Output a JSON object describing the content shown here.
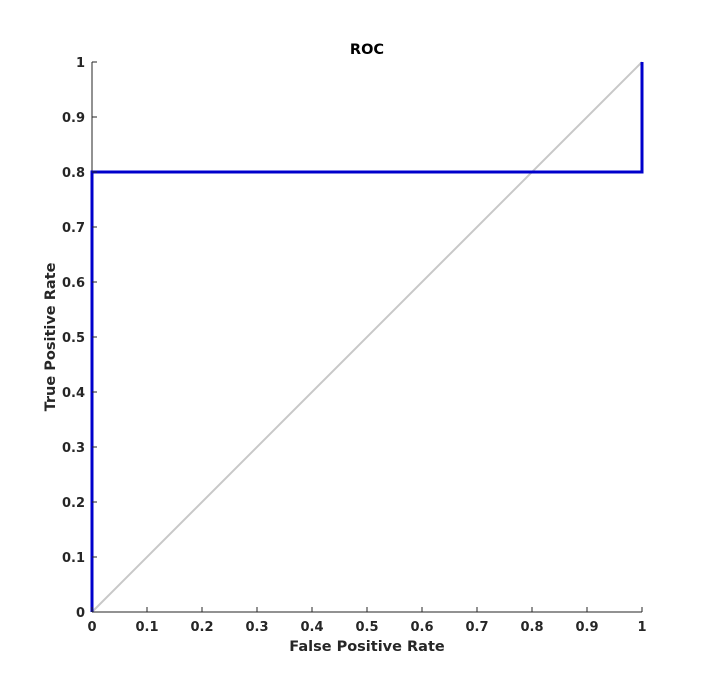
{
  "chart_data": {
    "type": "line",
    "title": "ROC",
    "xlabel": "False Positive Rate",
    "ylabel": "True Positive Rate",
    "xlim": [
      0,
      1
    ],
    "ylim": [
      0,
      1
    ],
    "grid": false,
    "legend": "none",
    "x_ticks": [
      "0",
      "0.1",
      "0.2",
      "0.3",
      "0.4",
      "0.5",
      "0.6",
      "0.7",
      "0.8",
      "0.9",
      "1"
    ],
    "y_ticks": [
      "0",
      "0.1",
      "0.2",
      "0.3",
      "0.4",
      "0.5",
      "0.6",
      "0.7",
      "0.8",
      "0.9",
      "1"
    ],
    "x_tick_values": [
      0,
      0.1,
      0.2,
      0.3,
      0.4,
      0.5,
      0.6,
      0.7,
      0.8,
      0.9,
      1
    ],
    "y_tick_values": [
      0,
      0.1,
      0.2,
      0.3,
      0.4,
      0.5,
      0.6,
      0.7,
      0.8,
      0.9,
      1
    ],
    "series": [
      {
        "x": [
          0,
          0,
          1,
          1
        ],
        "y": [
          0,
          0.8,
          0.8,
          1
        ],
        "color": "#0000cc"
      },
      {
        "x": [
          0,
          1
        ],
        "y": [
          0,
          1
        ],
        "color": "#c8c8c8"
      }
    ]
  }
}
